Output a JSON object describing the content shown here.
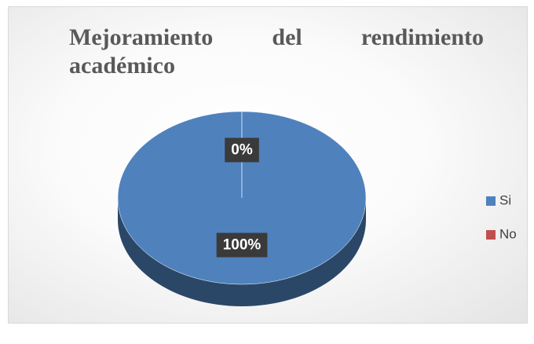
{
  "chart_data": {
    "type": "pie",
    "title": "Mejoramiento del rendimiento académico",
    "categories": [
      "Si",
      "No"
    ],
    "values": [
      100,
      0
    ],
    "value_labels": [
      "100%",
      "0%"
    ],
    "colors": [
      "#4f81bd",
      "#c0504d"
    ],
    "legend": "right",
    "style": "3d"
  }
}
